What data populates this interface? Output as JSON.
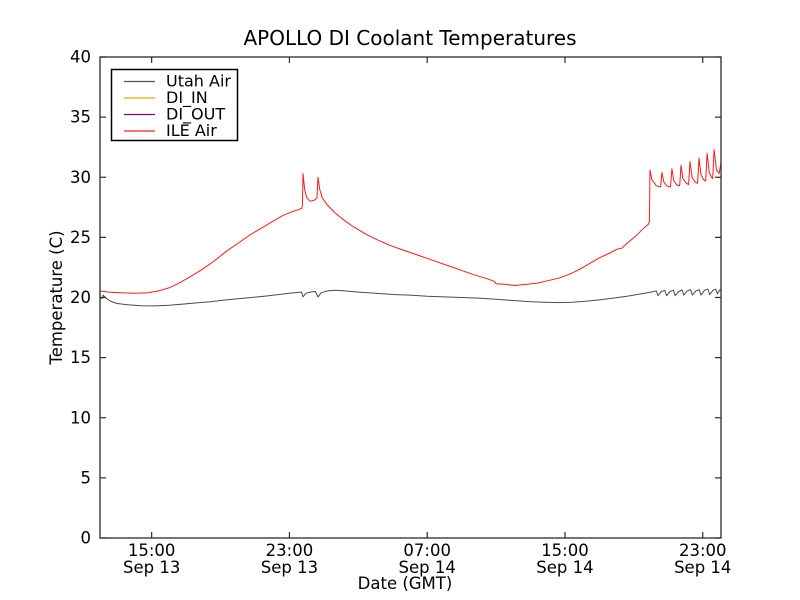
{
  "title": "APOLLO DI Coolant Temperatures",
  "axes": {
    "xlabel": "Date (GMT)",
    "ylabel": "Temperature (C)",
    "ylim": [
      0,
      40
    ],
    "yticks": [
      0,
      5,
      10,
      15,
      20,
      25,
      30,
      35,
      40
    ],
    "xlim_hours": [
      0,
      36.06
    ],
    "xticks": [
      {
        "hours": 3,
        "time": "15:00",
        "date": "Sep 13"
      },
      {
        "hours": 11,
        "time": "23:00",
        "date": "Sep 13"
      },
      {
        "hours": 19,
        "time": "07:00",
        "date": "Sep 14"
      },
      {
        "hours": 27,
        "time": "15:00",
        "date": "Sep 14"
      },
      {
        "hours": 35,
        "time": "23:00",
        "date": "Sep 14"
      }
    ]
  },
  "legend": {
    "position": "upper-left",
    "entries": [
      {
        "label": "Utah Air",
        "color": "#555555"
      },
      {
        "label": "DI_IN",
        "color": "#ffa500"
      },
      {
        "label": "DI_OUT",
        "color": "#800080"
      },
      {
        "label": "ILE Air",
        "color": "#ff2222"
      }
    ]
  },
  "chart_data": {
    "type": "line",
    "title": "APOLLO DI Coolant Temperatures",
    "xlabel": "Date (GMT)",
    "ylabel": "Temperature (C)",
    "x_units": "hours since Sep 13 12:00 GMT",
    "xlim": [
      0,
      36.06
    ],
    "ylim": [
      0,
      40
    ],
    "grid": false,
    "legend_position": "upper left",
    "series": [
      {
        "name": "Utah Air",
        "color": "#4a4a4a",
        "points": [
          [
            0,
            19.95
          ],
          [
            0.15,
            19.95
          ],
          [
            0.18,
            20.2
          ],
          [
            0.3,
            20.0
          ],
          [
            0.6,
            19.7
          ],
          [
            1.0,
            19.5
          ],
          [
            1.6,
            19.4
          ],
          [
            2.4,
            19.32
          ],
          [
            3.2,
            19.3
          ],
          [
            4.0,
            19.35
          ],
          [
            4.8,
            19.45
          ],
          [
            5.6,
            19.55
          ],
          [
            6.4,
            19.65
          ],
          [
            7.2,
            19.78
          ],
          [
            8.0,
            19.9
          ],
          [
            8.8,
            20.0
          ],
          [
            9.6,
            20.12
          ],
          [
            10.4,
            20.25
          ],
          [
            11.0,
            20.35
          ],
          [
            11.5,
            20.42
          ],
          [
            11.7,
            20.45
          ],
          [
            11.79,
            20.05
          ],
          [
            11.95,
            20.35
          ],
          [
            12.2,
            20.45
          ],
          [
            12.5,
            20.5
          ],
          [
            12.66,
            20.05
          ],
          [
            12.85,
            20.4
          ],
          [
            13.2,
            20.55
          ],
          [
            13.7,
            20.6
          ],
          [
            14.2,
            20.55
          ],
          [
            15.0,
            20.45
          ],
          [
            16.0,
            20.35
          ],
          [
            17.0,
            20.25
          ],
          [
            18.0,
            20.2
          ],
          [
            19.0,
            20.1
          ],
          [
            20.0,
            20.05
          ],
          [
            21.0,
            20.0
          ],
          [
            22.0,
            19.95
          ],
          [
            23.0,
            19.85
          ],
          [
            24.0,
            19.75
          ],
          [
            25.0,
            19.65
          ],
          [
            25.8,
            19.6
          ],
          [
            26.6,
            19.58
          ],
          [
            27.4,
            19.6
          ],
          [
            28.2,
            19.68
          ],
          [
            29.0,
            19.8
          ],
          [
            29.8,
            19.95
          ],
          [
            30.6,
            20.1
          ],
          [
            31.4,
            20.3
          ],
          [
            32.0,
            20.45
          ],
          [
            32.3,
            20.55
          ],
          [
            32.4,
            20.15
          ],
          [
            32.6,
            20.5
          ],
          [
            32.8,
            20.6
          ],
          [
            32.9,
            20.15
          ],
          [
            33.1,
            20.5
          ],
          [
            33.3,
            20.6
          ],
          [
            33.4,
            20.15
          ],
          [
            33.6,
            20.5
          ],
          [
            33.8,
            20.62
          ],
          [
            33.9,
            20.2
          ],
          [
            34.1,
            20.55
          ],
          [
            34.3,
            20.65
          ],
          [
            34.4,
            20.2
          ],
          [
            34.6,
            20.55
          ],
          [
            34.8,
            20.65
          ],
          [
            34.9,
            20.2
          ],
          [
            35.1,
            20.6
          ],
          [
            35.3,
            20.7
          ],
          [
            35.4,
            20.25
          ],
          [
            35.6,
            20.6
          ],
          [
            35.75,
            20.7
          ],
          [
            35.85,
            20.3
          ],
          [
            36.0,
            20.65
          ],
          [
            36.06,
            20.6
          ]
        ]
      },
      {
        "name": "DI_IN",
        "color": "#ffa500",
        "points": []
      },
      {
        "name": "DI_OUT",
        "color": "#800080",
        "points": []
      },
      {
        "name": "ILE Air",
        "color": "#ff1a1a",
        "points": [
          [
            0,
            20.55
          ],
          [
            0.5,
            20.45
          ],
          [
            1.2,
            20.4
          ],
          [
            2.0,
            20.35
          ],
          [
            2.8,
            20.4
          ],
          [
            3.4,
            20.55
          ],
          [
            4.0,
            20.8
          ],
          [
            4.6,
            21.2
          ],
          [
            5.2,
            21.7
          ],
          [
            5.9,
            22.3
          ],
          [
            6.6,
            23.0
          ],
          [
            7.3,
            23.8
          ],
          [
            8.0,
            24.5
          ],
          [
            8.7,
            25.2
          ],
          [
            9.4,
            25.8
          ],
          [
            10.0,
            26.3
          ],
          [
            10.6,
            26.8
          ],
          [
            11.1,
            27.1
          ],
          [
            11.5,
            27.3
          ],
          [
            11.7,
            27.4
          ],
          [
            11.75,
            27.6
          ],
          [
            11.79,
            30.3
          ],
          [
            11.88,
            29.0
          ],
          [
            12.0,
            28.3
          ],
          [
            12.2,
            28.0
          ],
          [
            12.45,
            28.1
          ],
          [
            12.6,
            28.3
          ],
          [
            12.66,
            30.0
          ],
          [
            12.76,
            29.0
          ],
          [
            12.9,
            28.3
          ],
          [
            13.2,
            27.7
          ],
          [
            13.6,
            27.1
          ],
          [
            14.1,
            26.5
          ],
          [
            14.7,
            25.9
          ],
          [
            15.4,
            25.3
          ],
          [
            16.1,
            24.8
          ],
          [
            16.9,
            24.3
          ],
          [
            17.7,
            23.9
          ],
          [
            18.5,
            23.5
          ],
          [
            19.3,
            23.1
          ],
          [
            20.1,
            22.7
          ],
          [
            20.9,
            22.3
          ],
          [
            21.7,
            21.9
          ],
          [
            22.4,
            21.6
          ],
          [
            22.9,
            21.35
          ],
          [
            23.0,
            21.15
          ],
          [
            23.5,
            21.1
          ],
          [
            24.1,
            21.0
          ],
          [
            24.8,
            21.1
          ],
          [
            25.4,
            21.2
          ],
          [
            26.0,
            21.4
          ],
          [
            26.6,
            21.6
          ],
          [
            27.2,
            21.9
          ],
          [
            27.8,
            22.3
          ],
          [
            28.4,
            22.8
          ],
          [
            29.0,
            23.3
          ],
          [
            29.6,
            23.7
          ],
          [
            30.0,
            24.0
          ],
          [
            30.3,
            24.1
          ],
          [
            30.6,
            24.5
          ],
          [
            31.1,
            25.1
          ],
          [
            31.6,
            25.8
          ],
          [
            31.85,
            26.1
          ],
          [
            31.9,
            26.3
          ],
          [
            31.94,
            30.6
          ],
          [
            32.05,
            29.8
          ],
          [
            32.3,
            29.3
          ],
          [
            32.55,
            29.2
          ],
          [
            32.63,
            30.4
          ],
          [
            32.74,
            29.6
          ],
          [
            32.95,
            29.25
          ],
          [
            33.13,
            29.2
          ],
          [
            33.21,
            30.7
          ],
          [
            33.32,
            29.7
          ],
          [
            33.5,
            29.35
          ],
          [
            33.66,
            29.3
          ],
          [
            33.74,
            31.0
          ],
          [
            33.85,
            29.9
          ],
          [
            34.05,
            29.5
          ],
          [
            34.18,
            29.4
          ],
          [
            34.26,
            31.3
          ],
          [
            34.38,
            30.0
          ],
          [
            34.55,
            29.6
          ],
          [
            34.7,
            29.5
          ],
          [
            34.78,
            31.6
          ],
          [
            34.9,
            30.2
          ],
          [
            35.05,
            29.8
          ],
          [
            35.17,
            29.7
          ],
          [
            35.25,
            32.0
          ],
          [
            35.38,
            30.4
          ],
          [
            35.5,
            30.0
          ],
          [
            35.58,
            29.9
          ],
          [
            35.66,
            32.3
          ],
          [
            35.8,
            30.6
          ],
          [
            35.95,
            30.3
          ],
          [
            36.06,
            31.2
          ]
        ]
      }
    ]
  }
}
